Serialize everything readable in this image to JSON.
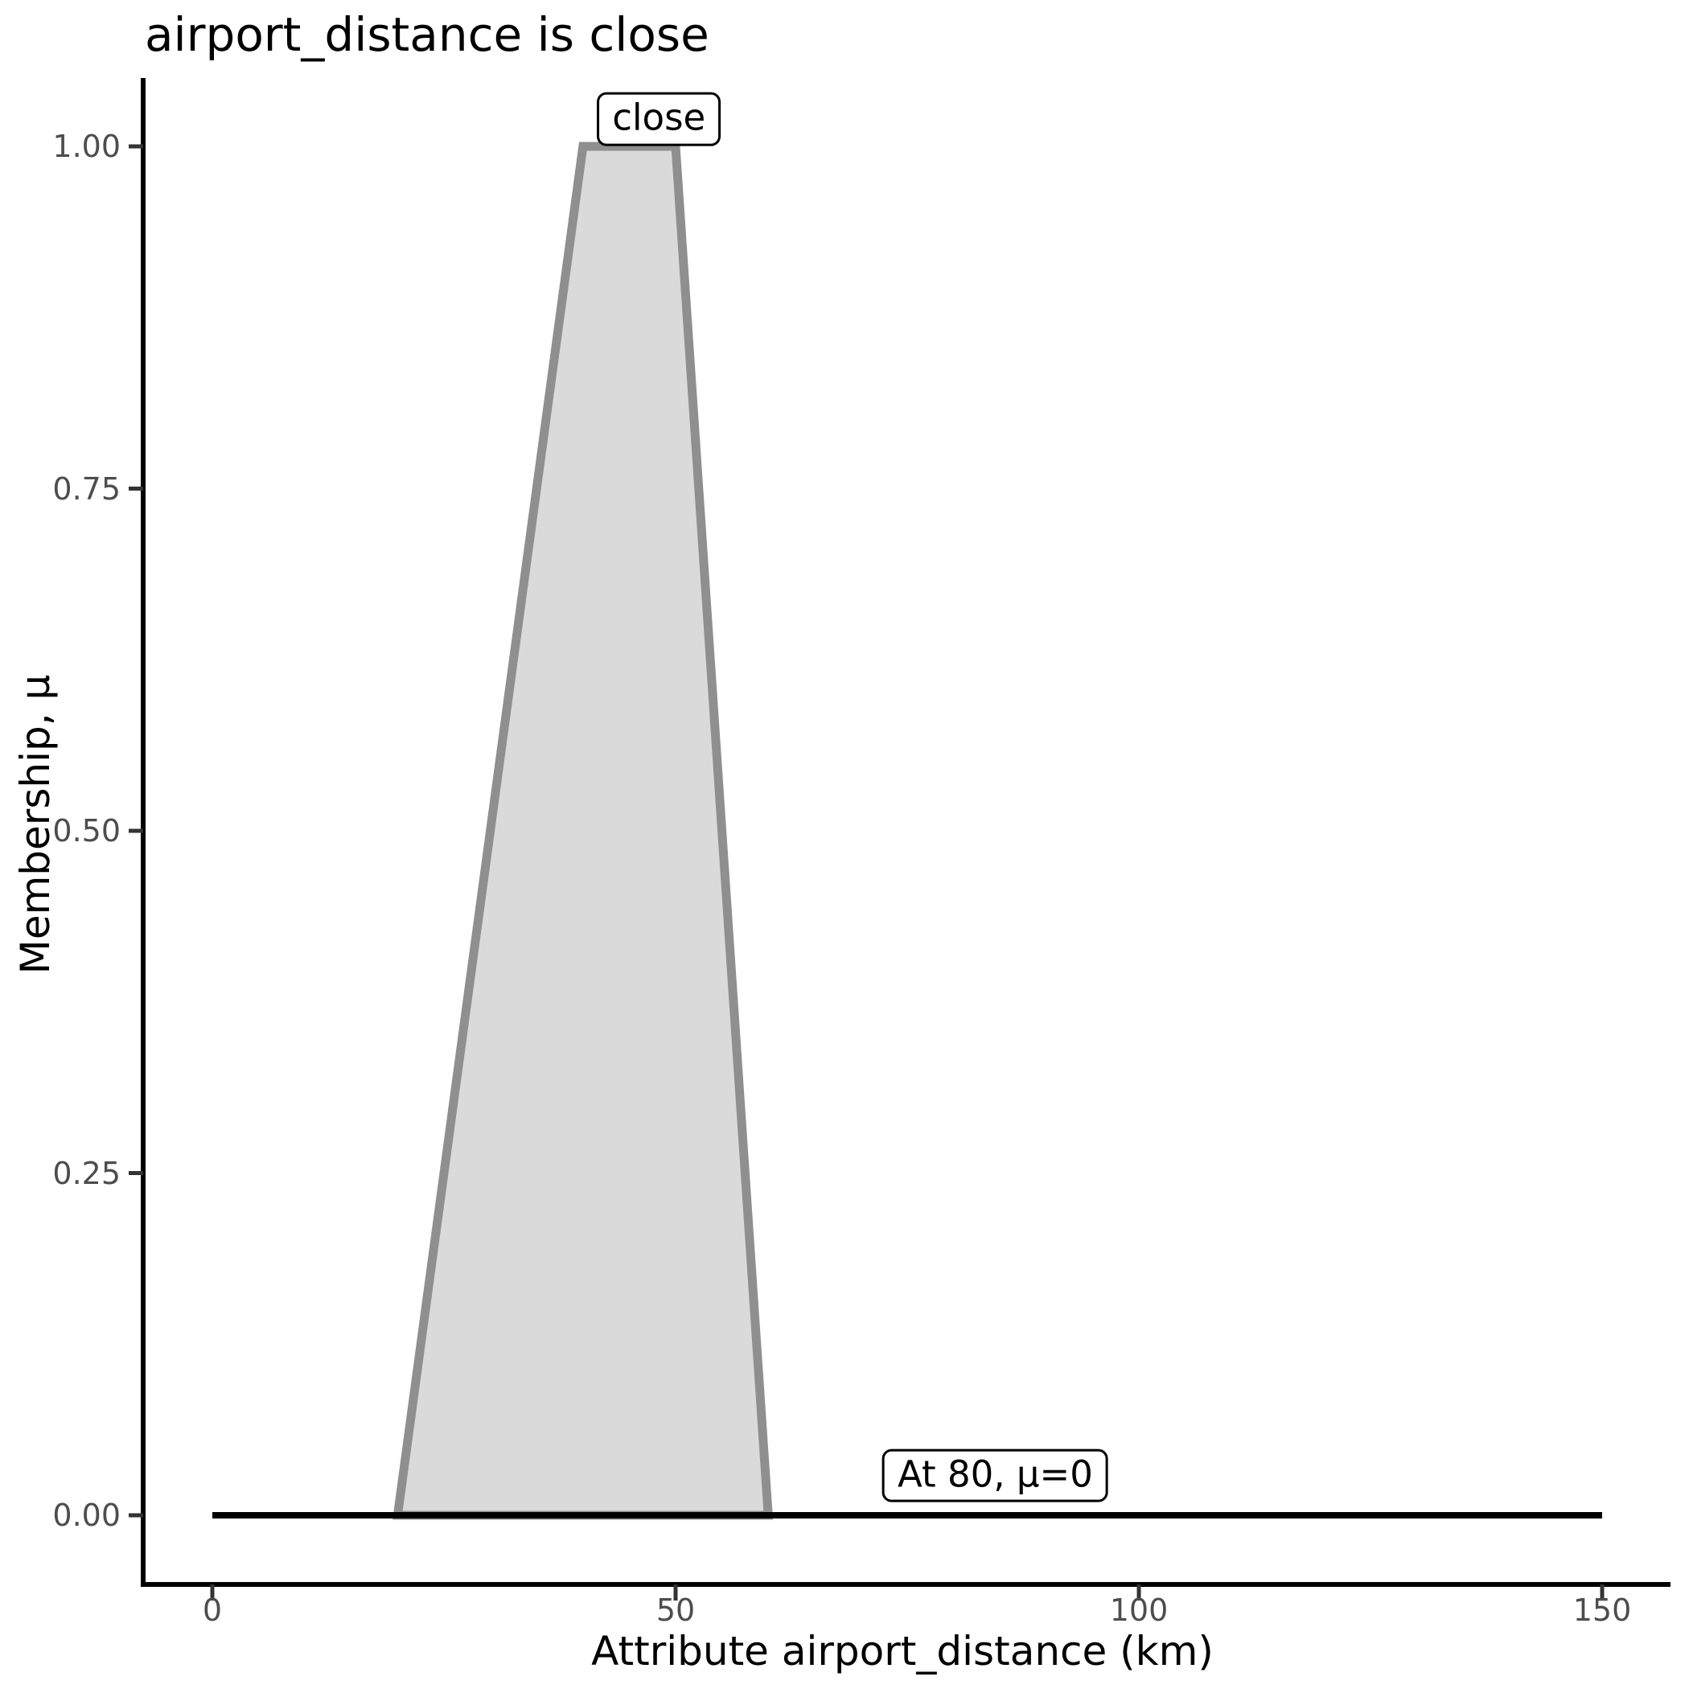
{
  "page": {
    "background": "#ffffff"
  },
  "chart_data": {
    "type": "area",
    "title": "airport_distance is close",
    "xlabel": "Attribute airport_distance (km)",
    "ylabel": "Membership, μ",
    "xlim": [
      0,
      150
    ],
    "ylim": [
      0,
      1
    ],
    "grid": false,
    "legend": false,
    "x_ticks": {
      "values": [
        0,
        50,
        100,
        150
      ],
      "labels": [
        "0",
        "50",
        "100",
        "150"
      ]
    },
    "y_ticks": {
      "values": [
        0,
        0.25,
        0.5,
        0.75,
        1.0
      ],
      "labels": [
        "0.00",
        "0.25",
        "0.50",
        "0.75",
        "1.00"
      ]
    },
    "series": [
      {
        "name": "close-membership-trapezoid",
        "type": "filled-polygon",
        "x": [
          20,
          40,
          50,
          60
        ],
        "mu": [
          0,
          1,
          1,
          0
        ],
        "fill": "#dadada",
        "stroke": "#8f8f8f",
        "stroke_width": 11
      },
      {
        "name": "zero-membership-baseline",
        "type": "line",
        "x": [
          0,
          150
        ],
        "mu": [
          0,
          0
        ],
        "stroke": "#000000",
        "stroke_width": 8
      }
    ],
    "annotations": [
      {
        "text": "close",
        "x": 48.2,
        "mu": 1.02
      },
      {
        "text": "At 80, μ=0",
        "x": 84.5,
        "mu": 0.029
      }
    ],
    "colors": {
      "tick_label": "#4d4d4d",
      "axis_text": "#000000",
      "spine": "#000000",
      "tick_mark": "#333333"
    }
  }
}
